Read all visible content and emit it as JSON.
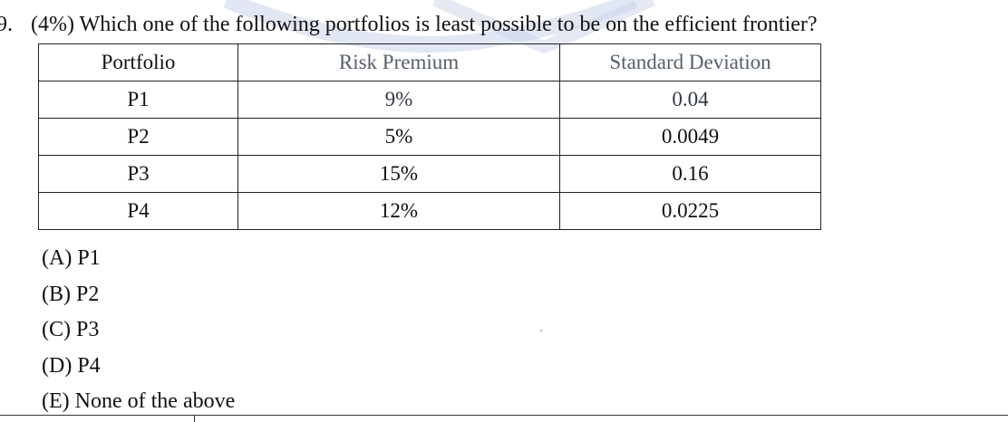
{
  "question": {
    "number": "9.",
    "text": "(4%) Which one of the following portfolios is least possible to be on the efficient frontier?"
  },
  "table": {
    "headers": [
      "Portfolio",
      "Risk Premium",
      "Standard Deviation"
    ],
    "rows": [
      [
        "P1",
        "9%",
        "0.04"
      ],
      [
        "P2",
        "5%",
        "0.0049"
      ],
      [
        "P3",
        "15%",
        "0.16"
      ],
      [
        "P4",
        "12%",
        "0.0225"
      ]
    ]
  },
  "options": [
    "(A) P1",
    "(B) P2",
    "(C) P3",
    "(D) P4",
    "(E) None of the above"
  ],
  "colors": {
    "text": "#111111",
    "watermark": "#c9d4ea"
  }
}
